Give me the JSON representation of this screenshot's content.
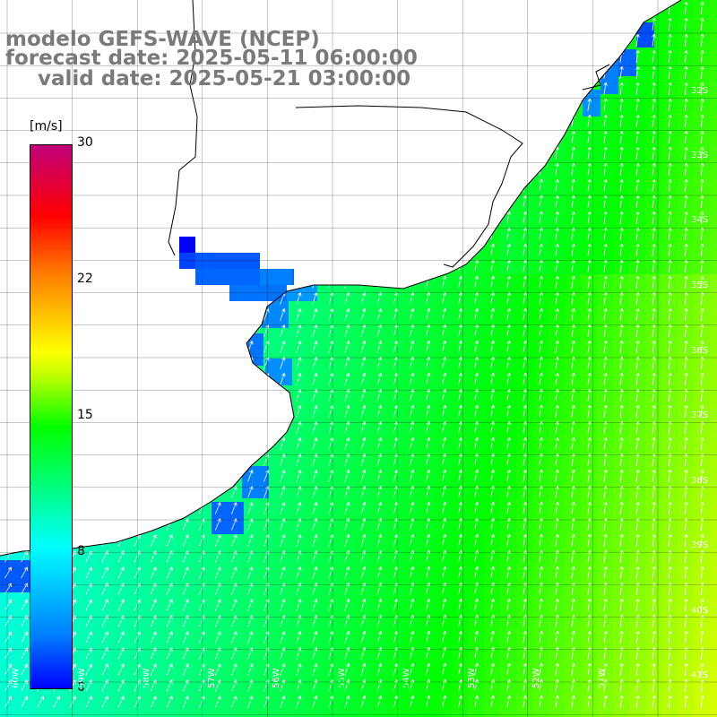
{
  "title": {
    "line1": "modelo GEFS-WAVE (NCEP)",
    "line2": "forecast date: 2025-05-11 06:00:00",
    "line3": "valid date: 2025-05-21 03:00:00"
  },
  "colorbar": {
    "unit": "[m/s]",
    "ticks": [
      "30",
      "22",
      "15",
      "8",
      "0"
    ],
    "stops": [
      "#0000ff",
      "#0080ff",
      "#00ffff",
      "#00ff00",
      "#ffff00",
      "#ff8000",
      "#ff0000",
      "#c0007a"
    ]
  },
  "lat_labels": [
    "32S",
    "33S",
    "34S",
    "35S",
    "36S",
    "37S",
    "38S",
    "39S",
    "40S",
    "41S"
  ],
  "lon_labels": [
    "60W",
    "59W",
    "58W",
    "57W",
    "56W",
    "55W",
    "54W",
    "53W",
    "52W",
    "51W"
  ],
  "colors": {
    "land": "#ffffff",
    "grid": "#000000",
    "coast": "#000000",
    "arrows": "#ffffff"
  }
}
